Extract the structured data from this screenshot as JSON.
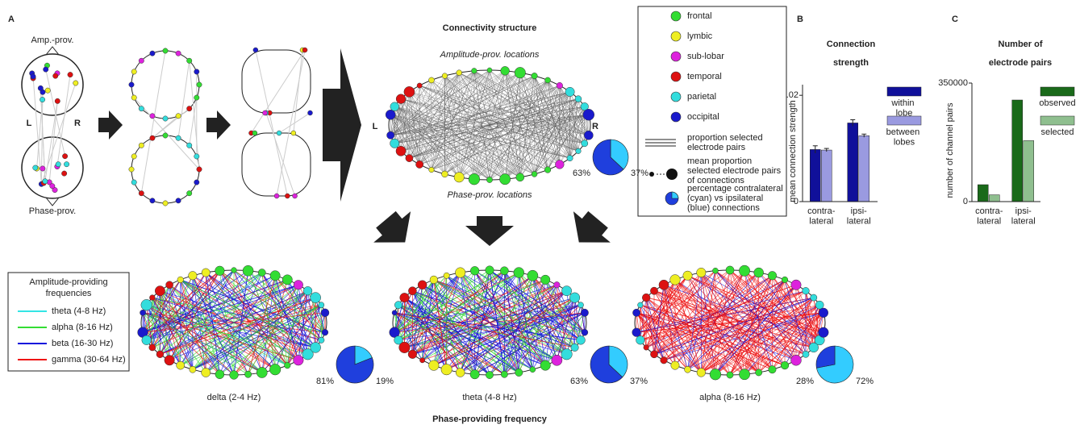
{
  "panel_a": {
    "label": "A",
    "amp_prov": "Amp.-prov.",
    "phase_prov": "Phase-prov.",
    "left": "L",
    "right": "R"
  },
  "connectivity": {
    "title": "Connectivity structure",
    "top_label": "Amplitude-prov. locations",
    "bottom_label": "Phase-prov. locations",
    "left": "L",
    "right": "R"
  },
  "region_legend": {
    "items": [
      {
        "label": "frontal",
        "color": "#33dd33"
      },
      {
        "label": "lymbic",
        "color": "#eeee22"
      },
      {
        "label": "sub-lobar",
        "color": "#dd22dd"
      },
      {
        "label": "temporal",
        "color": "#dd1111"
      },
      {
        "label": "parietal",
        "color": "#33dddd"
      },
      {
        "label": "occipital",
        "color": "#1a1acc"
      }
    ],
    "line_item": [
      "proportion selected",
      "electrode pairs"
    ],
    "size_item": [
      "mean proportion",
      "selected electrode pairs",
      "of connections"
    ],
    "pie_item": [
      "percentage contralateral",
      "(cyan) vs ipsilateral",
      "(blue) connections"
    ]
  },
  "frequency_legend": {
    "title_lines": [
      "Amplitude-providing",
      "frequencies"
    ],
    "items": [
      {
        "label": "theta (4-8 Hz)",
        "color": "#33e5e5"
      },
      {
        "label": "alpha (8-16 Hz)",
        "color": "#33dd33"
      },
      {
        "label": "beta (16-30 Hz)",
        "color": "#1010dd"
      },
      {
        "label": "gamma (30-64 Hz)",
        "color": "#ee1111"
      }
    ]
  },
  "bottom": {
    "panels": [
      "delta (2-4 Hz)",
      "theta (4-8 Hz)",
      "alpha (8-16 Hz)"
    ],
    "xlabel": "Phase-providing frequency"
  },
  "chart_data": [
    {
      "type": "bar",
      "label": "B",
      "title_lines": [
        "Connection",
        "strength"
      ],
      "y_label": "mean connection strength",
      "categories": [
        "contra-lateral",
        "ipsi-lateral"
      ],
      "series": [
        {
          "name": "within lobe",
          "color": "#10109a",
          "values": [
            0.0098,
            0.0148
          ],
          "errors": [
            0.0007,
            0.0006
          ]
        },
        {
          "name": "between lobes",
          "color": "#9a9ae0",
          "values": [
            0.0097,
            0.0124
          ],
          "errors": [
            0.0003,
            0.0003
          ]
        }
      ],
      "ylim": [
        0,
        0.022
      ],
      "yticks": [
        0,
        {
          "value": 0.02,
          "label": ".02"
        }
      ]
    },
    {
      "type": "bar",
      "label": "C",
      "title_lines": [
        "Number of",
        "electrode pairs"
      ],
      "y_label": "number of channel pairs",
      "categories": [
        "contra-lateral",
        "ipsi-lateral"
      ],
      "series": [
        {
          "name": "observed",
          "color": "#1a6a1a",
          "values": [
            50000,
            300000
          ]
        },
        {
          "name": "selected",
          "color": "#8fbf8f",
          "values": [
            20000,
            180000
          ]
        }
      ],
      "ylim": [
        0,
        350000
      ],
      "yticks": [
        0,
        350000
      ]
    },
    {
      "type": "pie",
      "values": [
        63,
        37
      ],
      "value_labels": [
        "63%",
        "37%"
      ],
      "colors": [
        "#1f3fdd",
        "#33ccff"
      ]
    },
    {
      "type": "pie",
      "values": [
        81,
        19
      ],
      "value_labels": [
        "81%",
        "19%"
      ],
      "colors": [
        "#1f3fdd",
        "#33ccff"
      ]
    },
    {
      "type": "pie",
      "values": [
        63,
        37
      ],
      "value_labels": [
        "63%",
        "37%"
      ],
      "colors": [
        "#1f3fdd",
        "#33ccff"
      ]
    },
    {
      "type": "pie",
      "values": [
        28,
        72
      ],
      "value_labels": [
        "28%",
        "72%"
      ],
      "colors": [
        "#1f3fdd",
        "#33ccff"
      ]
    }
  ]
}
